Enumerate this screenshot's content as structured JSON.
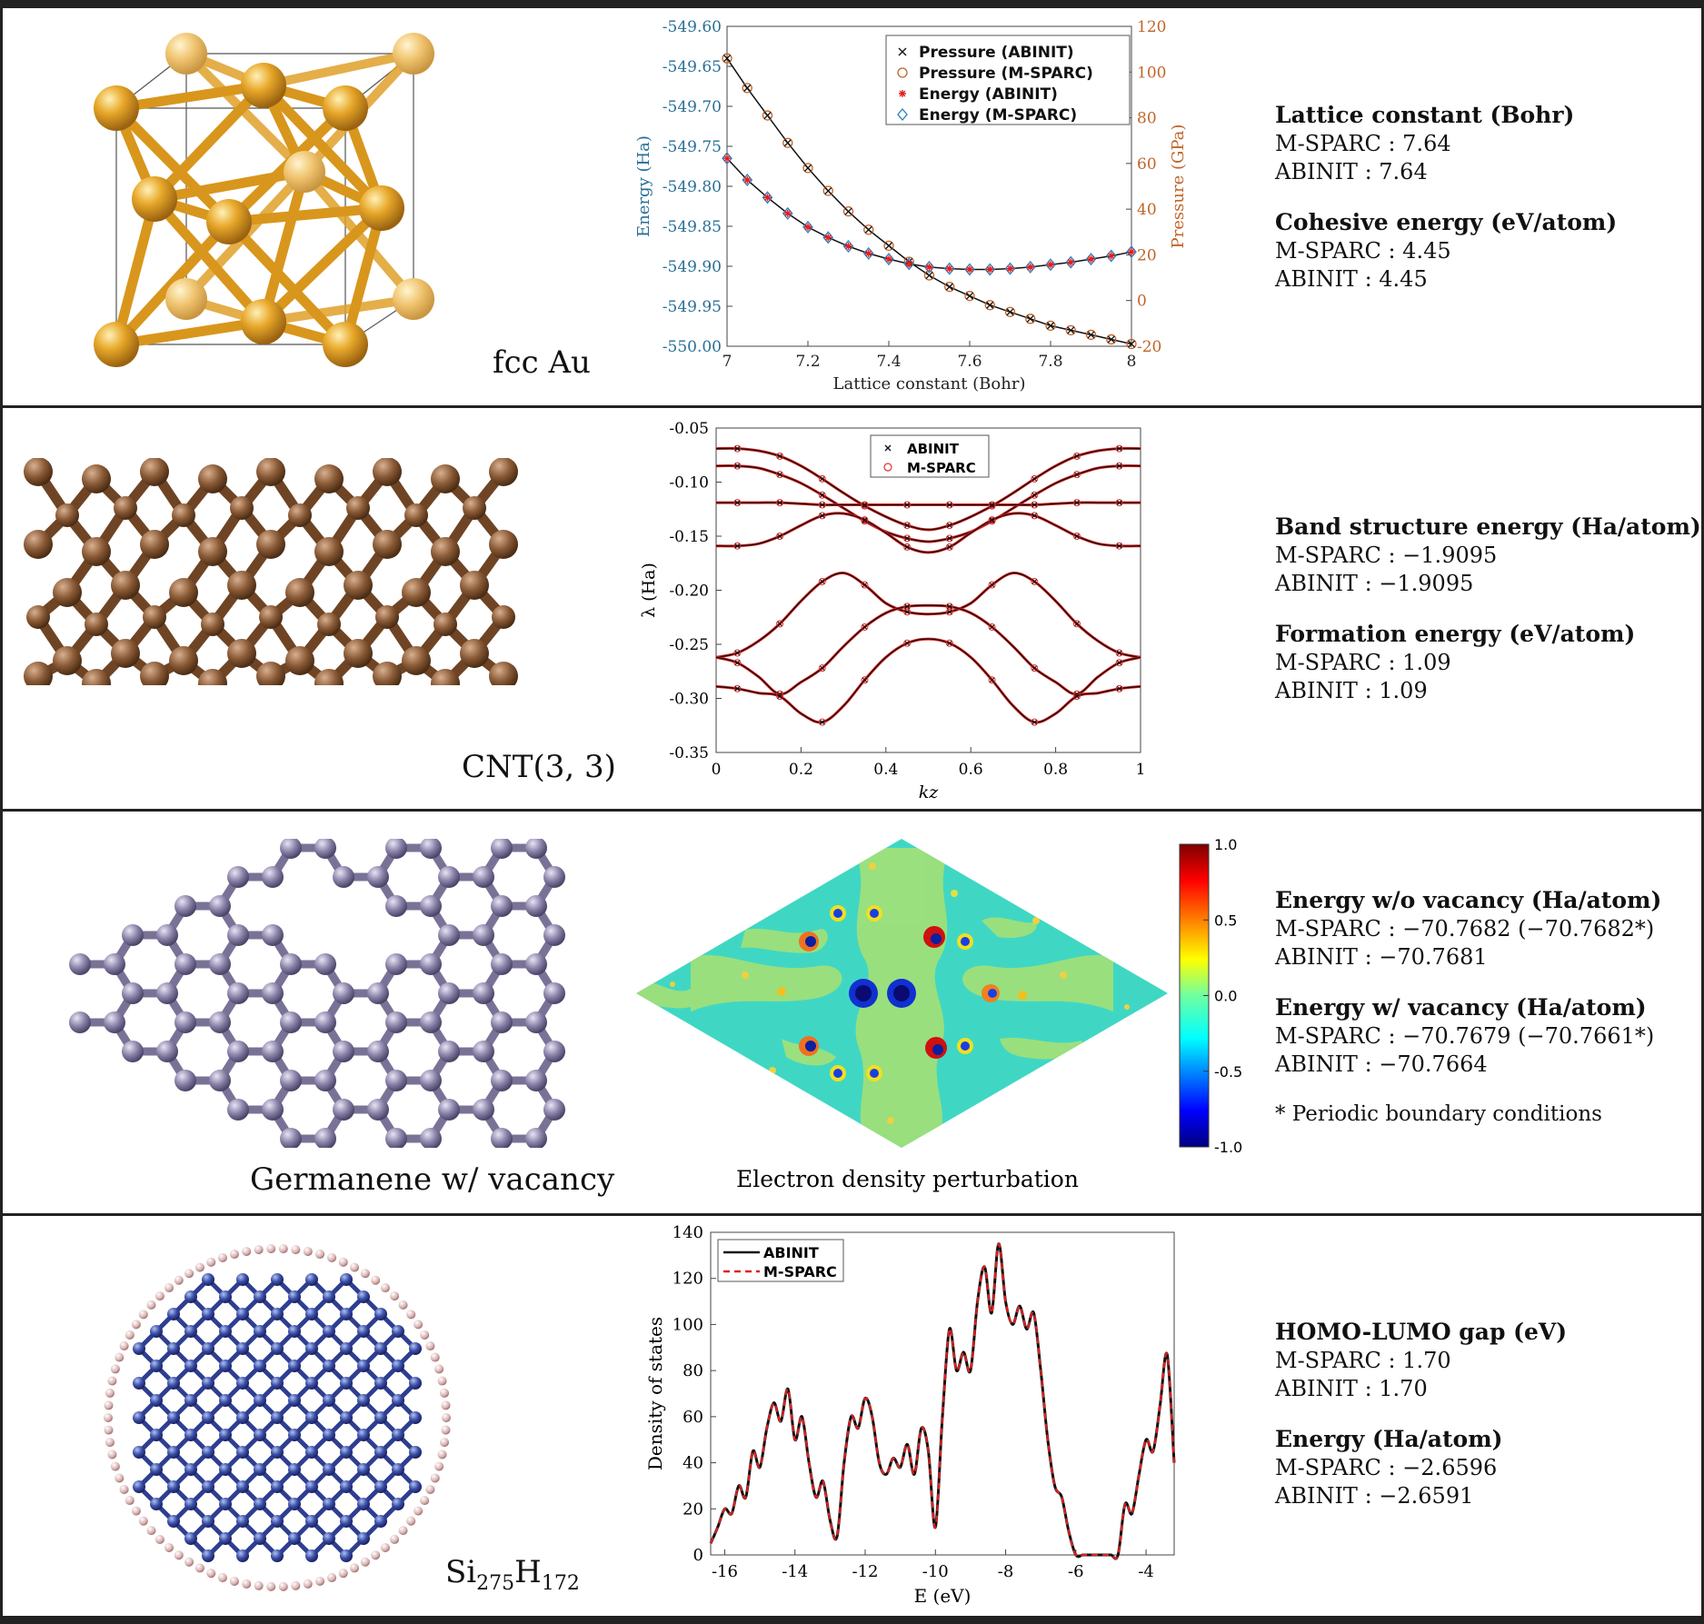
{
  "panels": [
    {
      "label": "fcc Au",
      "info": [
        {
          "heading": "Lattice constant (Bohr)",
          "lines": [
            "M-SPARC : 7.64",
            "ABINIT    : 7.64"
          ]
        },
        {
          "heading": "Cohesive energy (eV/atom)",
          "lines": [
            "M-SPARC : 4.45",
            "ABINIT    : 4.45"
          ]
        }
      ]
    },
    {
      "label": "CNT(3, 3)",
      "info": [
        {
          "heading": "Band structure energy (Ha/atom)",
          "lines": [
            "M-SPARC : −1.9095",
            "ABINIT    : −1.9095"
          ]
        },
        {
          "heading": "Formation energy (eV/atom)",
          "lines": [
            "M-SPARC : 1.09",
            "ABINIT    : 1.09"
          ]
        }
      ]
    },
    {
      "label": "Germanene w/ vacancy",
      "caption": "Electron density perturbation",
      "info": [
        {
          "heading": "Energy w/o vacancy (Ha/atom)",
          "lines": [
            "M-SPARC : −70.7682 (−70.7682*)",
            "ABINIT    : −70.7681"
          ]
        },
        {
          "heading": "Energy w/ vacancy (Ha/atom)",
          "lines": [
            "M-SPARC : −70.7679 (−70.7661*)",
            "ABINIT    : −70.7664"
          ]
        }
      ],
      "note": "* Periodic boundary conditions"
    },
    {
      "label_main": "Si",
      "label_sub1": "275",
      "label_mid": "H",
      "label_sub2": "172",
      "info": [
        {
          "heading": "HOMO-LUMO gap (eV)",
          "lines": [
            "M-SPARC : 1.70",
            "ABINIT    : 1.70"
          ]
        },
        {
          "heading": "Energy (Ha/atom)",
          "lines": [
            "M-SPARC : −2.6596",
            "ABINIT    : −2.6591"
          ]
        }
      ]
    }
  ],
  "colors": {
    "energy_axis": "#2a6f97",
    "pressure_axis": "#c0652a",
    "au": "#e6a42a",
    "carbon": "#8a5a3a",
    "germanium": "#8a82a8",
    "silicon": "#3a4fa8",
    "hydrogen": "#d8b0b0"
  },
  "chart_data": [
    {
      "type": "line",
      "xlabel": "Lattice constant (Bohr)",
      "ylabel": "Energy (Ha)",
      "y2label": "Pressure (GPa)",
      "xlim": [
        7,
        8
      ],
      "ylim": [
        -550.0,
        -549.6
      ],
      "y2lim": [
        -20,
        120
      ],
      "xticks": [
        "7",
        "7.2",
        "7.4",
        "7.6",
        "7.8",
        "8"
      ],
      "yticks": [
        "-550.00",
        "-549.95",
        "-549.90",
        "-549.85",
        "-549.80",
        "-549.75",
        "-549.70",
        "-549.65",
        "-549.60"
      ],
      "y2ticks": [
        "-20",
        "0",
        "20",
        "40",
        "60",
        "80",
        "100",
        "120"
      ],
      "legend": [
        "Pressure (ABINIT)",
        "Pressure (M-SPARC)",
        "Energy (ABINIT)",
        "Energy (M-SPARC)"
      ],
      "legend_position": "top-right",
      "x": [
        7.0,
        7.05,
        7.1,
        7.15,
        7.2,
        7.25,
        7.3,
        7.35,
        7.4,
        7.45,
        7.5,
        7.55,
        7.6,
        7.65,
        7.7,
        7.75,
        7.8,
        7.85,
        7.9,
        7.95,
        8.0
      ],
      "series": [
        {
          "name": "Pressure (ABINIT)",
          "axis": "right",
          "values": [
            106,
            93,
            81,
            69,
            58,
            48,
            39,
            31,
            24,
            17,
            11,
            6,
            2,
            -2,
            -5,
            -8,
            -11,
            -13,
            -15,
            -17,
            -19
          ]
        },
        {
          "name": "Pressure (M-SPARC)",
          "axis": "right",
          "values": [
            106,
            93,
            81,
            69,
            58,
            48,
            39,
            31,
            24,
            17,
            11,
            6,
            2,
            -2,
            -5,
            -8,
            -11,
            -13,
            -15,
            -17,
            -19
          ]
        },
        {
          "name": "Energy (ABINIT)",
          "axis": "left",
          "values": [
            -549.765,
            -549.792,
            -549.814,
            -549.834,
            -549.851,
            -549.864,
            -549.875,
            -549.884,
            -549.891,
            -549.897,
            -549.901,
            -549.903,
            -549.904,
            -549.904,
            -549.903,
            -549.901,
            -549.898,
            -549.895,
            -549.891,
            -549.887,
            -549.882
          ]
        },
        {
          "name": "Energy (M-SPARC)",
          "axis": "left",
          "values": [
            -549.765,
            -549.792,
            -549.814,
            -549.834,
            -549.851,
            -549.864,
            -549.875,
            -549.884,
            -549.891,
            -549.897,
            -549.901,
            -549.903,
            -549.904,
            -549.904,
            -549.903,
            -549.901,
            -549.898,
            -549.895,
            -549.891,
            -549.887,
            -549.882
          ]
        }
      ]
    },
    {
      "type": "line",
      "xlabel": "k_z",
      "ylabel": "λ (Ha)",
      "xlim": [
        0,
        1
      ],
      "ylim": [
        -0.35,
        -0.05
      ],
      "xticks": [
        "0",
        "0.2",
        "0.4",
        "0.6",
        "0.8",
        "1"
      ],
      "yticks": [
        "-0.35",
        "-0.30",
        "-0.25",
        "-0.20",
        "-0.15",
        "-0.10",
        "-0.05"
      ],
      "legend": [
        "ABINIT",
        "M-SPARC"
      ],
      "legend_position": "top-center",
      "x": [
        0,
        0.05,
        0.1,
        0.15,
        0.2,
        0.25,
        0.3,
        0.35,
        0.4,
        0.45,
        0.5,
        0.55,
        0.6,
        0.65,
        0.7,
        0.75,
        0.8,
        0.85,
        0.9,
        0.95,
        1.0
      ],
      "bands": [
        [
          -0.069,
          -0.069,
          -0.071,
          -0.076,
          -0.085,
          -0.097,
          -0.11,
          -0.122,
          -0.132,
          -0.14,
          -0.144,
          -0.14,
          -0.132,
          -0.122,
          -0.11,
          -0.097,
          -0.085,
          -0.076,
          -0.071,
          -0.069,
          -0.069
        ],
        [
          -0.085,
          -0.085,
          -0.087,
          -0.093,
          -0.101,
          -0.112,
          -0.124,
          -0.136,
          -0.146,
          -0.152,
          -0.155,
          -0.152,
          -0.146,
          -0.136,
          -0.124,
          -0.112,
          -0.101,
          -0.093,
          -0.087,
          -0.085,
          -0.085
        ],
        [
          -0.119,
          -0.119,
          -0.119,
          -0.119,
          -0.12,
          -0.121,
          -0.121,
          -0.121,
          -0.121,
          -0.121,
          -0.121,
          -0.121,
          -0.121,
          -0.121,
          -0.121,
          -0.121,
          -0.12,
          -0.119,
          -0.119,
          -0.119,
          -0.119
        ],
        [
          -0.159,
          -0.159,
          -0.157,
          -0.15,
          -0.14,
          -0.131,
          -0.129,
          -0.135,
          -0.147,
          -0.16,
          -0.165,
          -0.16,
          -0.147,
          -0.135,
          -0.129,
          -0.131,
          -0.14,
          -0.15,
          -0.157,
          -0.159,
          -0.159
        ],
        [
          -0.262,
          -0.258,
          -0.247,
          -0.231,
          -0.21,
          -0.192,
          -0.184,
          -0.195,
          -0.212,
          -0.22,
          -0.222,
          -0.22,
          -0.212,
          -0.195,
          -0.184,
          -0.192,
          -0.21,
          -0.231,
          -0.247,
          -0.258,
          -0.262
        ],
        [
          -0.262,
          -0.267,
          -0.28,
          -0.296,
          -0.285,
          -0.272,
          -0.252,
          -0.234,
          -0.221,
          -0.215,
          -0.214,
          -0.215,
          -0.221,
          -0.234,
          -0.252,
          -0.272,
          -0.285,
          -0.296,
          -0.28,
          -0.267,
          -0.262
        ],
        [
          -0.289,
          -0.291,
          -0.295,
          -0.298,
          -0.314,
          -0.322,
          -0.307,
          -0.283,
          -0.262,
          -0.249,
          -0.245,
          -0.249,
          -0.262,
          -0.283,
          -0.307,
          -0.322,
          -0.314,
          -0.298,
          -0.295,
          -0.291,
          -0.289
        ]
      ]
    },
    {
      "type": "heatmap",
      "colorbar_ticks": [
        "1.0",
        "0.5",
        "0.0",
        "-0.5",
        "-1.0"
      ],
      "colorbar_range": [
        -1.0,
        1.0
      ]
    },
    {
      "type": "line",
      "xlabel": "E (eV)",
      "ylabel": "Density of states",
      "xlim": [
        -16.4,
        -3.2
      ],
      "ylim": [
        0,
        140
      ],
      "xticks": [
        "-16",
        "-14",
        "-12",
        "-10",
        "-8",
        "-6",
        "-4"
      ],
      "yticks": [
        "0",
        "20",
        "40",
        "60",
        "80",
        "100",
        "120",
        "140"
      ],
      "legend": [
        "ABINIT",
        "M-SPARC"
      ],
      "legend_position": "top-left",
      "x": [
        -16.4,
        -16.2,
        -16.0,
        -15.8,
        -15.6,
        -15.4,
        -15.2,
        -15.0,
        -14.8,
        -14.6,
        -14.4,
        -14.2,
        -14.0,
        -13.8,
        -13.6,
        -13.4,
        -13.2,
        -13.0,
        -12.8,
        -12.6,
        -12.4,
        -12.2,
        -12.0,
        -11.8,
        -11.6,
        -11.4,
        -11.2,
        -11.0,
        -10.8,
        -10.6,
        -10.4,
        -10.2,
        -10.0,
        -9.8,
        -9.6,
        -9.4,
        -9.2,
        -9.0,
        -8.8,
        -8.6,
        -8.4,
        -8.2,
        -8.0,
        -7.8,
        -7.6,
        -7.4,
        -7.2,
        -7.0,
        -6.8,
        -6.6,
        -6.4,
        -6.2,
        -6.0,
        -5.8,
        -5.6,
        -5.4,
        -5.2,
        -5.0,
        -4.8,
        -4.6,
        -4.4,
        -4.2,
        -4.0,
        -3.8,
        -3.6,
        -3.4,
        -3.2
      ],
      "series": [
        {
          "name": "ABINIT",
          "values": [
            5,
            12,
            20,
            18,
            30,
            25,
            45,
            38,
            55,
            66,
            58,
            72,
            50,
            60,
            40,
            25,
            32,
            15,
            8,
            40,
            60,
            55,
            68,
            60,
            40,
            35,
            42,
            38,
            48,
            35,
            55,
            45,
            12,
            60,
            98,
            80,
            88,
            80,
            110,
            125,
            105,
            135,
            110,
            100,
            108,
            98,
            105,
            80,
            50,
            30,
            25,
            10,
            0,
            0,
            0,
            0,
            0,
            0,
            0,
            22,
            18,
            35,
            50,
            45,
            65,
            87,
            40
          ]
        },
        {
          "name": "M-SPARC",
          "values": [
            5,
            12,
            20,
            18,
            30,
            25,
            45,
            38,
            55,
            66,
            58,
            72,
            50,
            60,
            40,
            25,
            32,
            15,
            8,
            40,
            60,
            55,
            68,
            60,
            40,
            35,
            42,
            38,
            48,
            35,
            55,
            45,
            12,
            60,
            98,
            80,
            88,
            80,
            110,
            125,
            105,
            135,
            110,
            100,
            108,
            98,
            105,
            80,
            50,
            30,
            25,
            10,
            0,
            0,
            0,
            0,
            0,
            0,
            0,
            22,
            18,
            35,
            50,
            45,
            65,
            87,
            40
          ]
        }
      ]
    }
  ]
}
